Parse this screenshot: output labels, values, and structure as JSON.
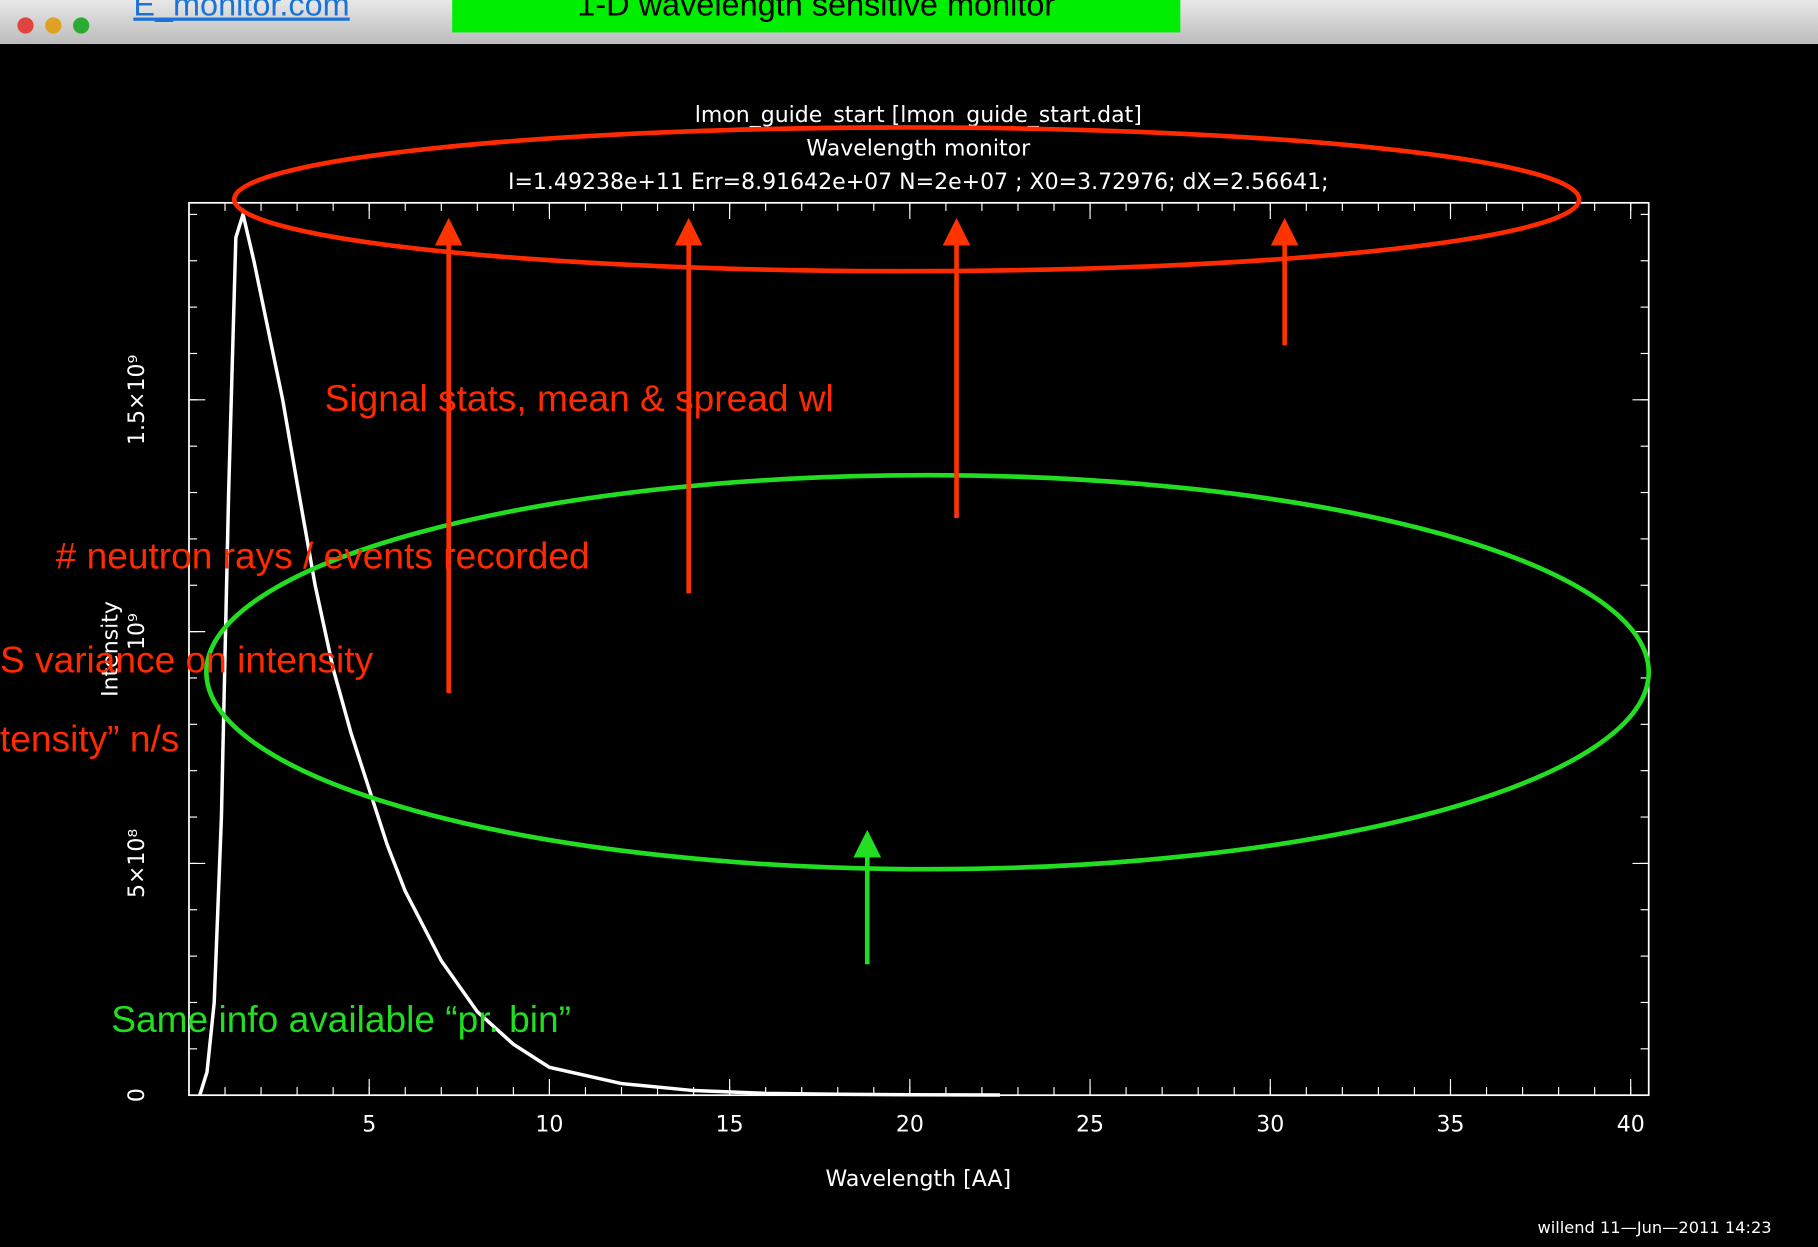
{
  "window": {
    "link": "E_monitor.com",
    "badge": "1-D wavelength sensitive monitor",
    "footer": "willend 11—Jun—2011 14:23"
  },
  "annotations": {
    "stats": "Signal stats, mean & spread wl",
    "rays": "# neutron rays / events recorded",
    "variance": "S variance on intensity",
    "intensity": "tensity” n/s",
    "bin": "Same info available “pr. bin”"
  },
  "chart_data": {
    "type": "line",
    "title": "lmon_guide_start [lmon_guide_start.dat]",
    "subtitle": "Wavelength monitor",
    "stats": "I=1.49238e+11 Err=8.91642e+07 N=2e+07 ; X0=3.72976; dX=2.56641;",
    "x_label": "Wavelength [AA]",
    "y_label": "Intensity",
    "x": [
      0.3,
      0.5,
      0.7,
      0.9,
      1.1,
      1.3,
      1.5,
      1.8,
      2.2,
      2.6,
      3,
      3.5,
      4,
      4.5,
      5,
      5.5,
      6,
      7,
      8,
      9,
      10,
      12,
      14,
      16,
      18,
      20,
      22.5
    ],
    "series": [
      {
        "name": "Intensity",
        "color": "#ffffff",
        "values": [
          0,
          50000000,
          200000000,
          600000000,
          1300000000,
          1850000000,
          1900000000,
          1800000000,
          1650000000,
          1500000000,
          1320000000,
          1100000000,
          920000000,
          780000000,
          660000000,
          540000000,
          440000000,
          290000000,
          180000000,
          110000000,
          60000000,
          25000000,
          10000000,
          4000000,
          2000000,
          1000000,
          500000
        ]
      }
    ],
    "xlim": [
      0,
      40.5
    ],
    "ylim": [
      0,
      1925000000
    ],
    "xticks": [
      5,
      10,
      15,
      20,
      25,
      30,
      35,
      40
    ],
    "yticks": [
      0,
      {
        "value": 500000000,
        "label": "5×10⁸"
      },
      {
        "value": 1000000000,
        "label": "10⁹"
      },
      {
        "value": 1500000000,
        "label": "1.5×10⁹"
      }
    ],
    "grid": false
  }
}
